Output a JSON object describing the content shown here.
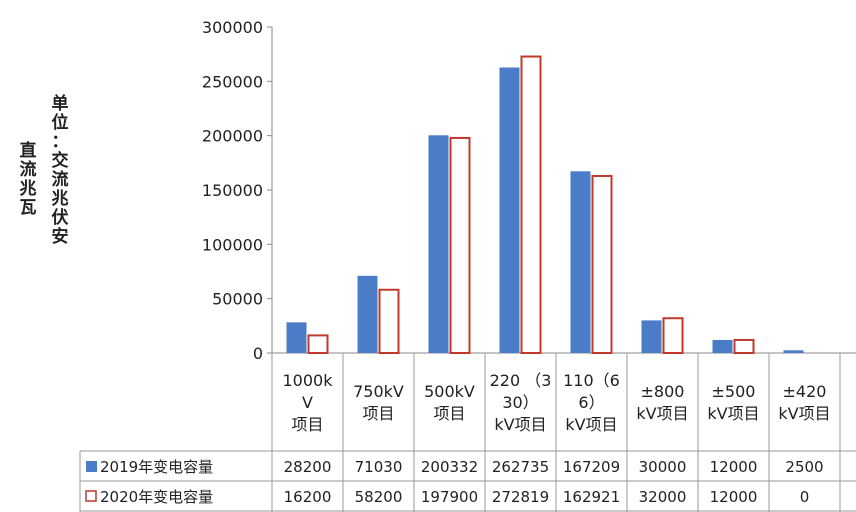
{
  "chart_data": {
    "type": "bar",
    "ylabel_columns": [
      "单位：交流兆伏安",
      "直流兆瓦"
    ],
    "categories": [
      [
        "1000k",
        "V",
        "项目"
      ],
      [
        "750kV",
        "项目"
      ],
      [
        "500kV",
        "项目"
      ],
      [
        "220 （3",
        "30）",
        "kV项目"
      ],
      [
        "110（6",
        "6）",
        "kV项目"
      ],
      [
        "±800",
        "kV项目"
      ],
      [
        "±500",
        "kV项目"
      ],
      [
        "±420",
        "kV项目"
      ]
    ],
    "series": [
      {
        "name": "2019年变电容量",
        "values": [
          28200,
          71030,
          200332,
          262735,
          167209,
          30000,
          12000,
          2500
        ],
        "color": "#4a7cc7"
      },
      {
        "name": "2020年变电容量",
        "values": [
          16200,
          58200,
          197900,
          272819,
          162921,
          32000,
          12000,
          0
        ],
        "color": "#c0392b"
      }
    ],
    "yticks": [
      0,
      50000,
      100000,
      150000,
      200000,
      250000,
      300000
    ],
    "ylim": [
      0,
      300000
    ],
    "grid": false,
    "legend": "data-table"
  }
}
